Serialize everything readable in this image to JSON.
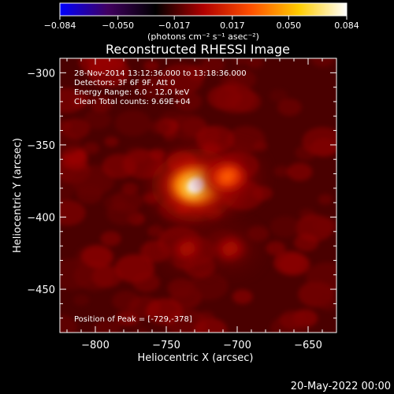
{
  "chart_data": {
    "type": "heatmap",
    "title": "Reconstructed RHESSI Image",
    "xlabel": "Heliocentric X (arcsec)",
    "ylabel": "Heliocentric Y (arcsec)",
    "xlim": [
      -825,
      -630
    ],
    "ylim": [
      -480,
      -290
    ],
    "x_ticks": [
      -800,
      -750,
      -700,
      -650
    ],
    "y_ticks": [
      -300,
      -350,
      -400,
      -450
    ],
    "x_tick_labels": [
      "−800",
      "−750",
      "−700",
      "−650"
    ],
    "y_tick_labels": [
      "−300",
      "−350",
      "−400",
      "−450"
    ],
    "colorbar": {
      "min": -0.084,
      "max": 0.084,
      "ticks": [
        -0.084,
        -0.05,
        -0.017,
        0.017,
        0.05,
        0.084
      ],
      "tick_labels": [
        "−0.084",
        "−0.050",
        "−0.017",
        "0.017",
        "0.050",
        "0.084"
      ],
      "unit_label": "(photons cm⁻² s⁻¹ asec⁻²)",
      "colormap": "red-temperature",
      "stops": [
        "#0000ff",
        "#400060",
        "#000000",
        "#b00000",
        "#ff5000",
        "#ffcc00",
        "#ffffff"
      ]
    },
    "annotations": [
      "28-Nov-2014 13:12:36.000 to 13:18:36.000",
      "Detectors: 3F 6F 9F, Att 0",
      "Energy Range: 6.0 - 12.0 keV",
      "Clean    Total counts: 9.69E+04"
    ],
    "peak_label": "Position of Peak = [-729,-378]",
    "sources": [
      {
        "x": -729,
        "y": -378,
        "relative_intensity": 1.0
      },
      {
        "x": -707,
        "y": -372,
        "relative_intensity": 0.55
      },
      {
        "x": -735,
        "y": -422,
        "relative_intensity": 0.3
      },
      {
        "x": -705,
        "y": -422,
        "relative_intensity": 0.28
      }
    ],
    "background_color": "#4a0000"
  },
  "footer_date": "20-May-2022 00:00"
}
